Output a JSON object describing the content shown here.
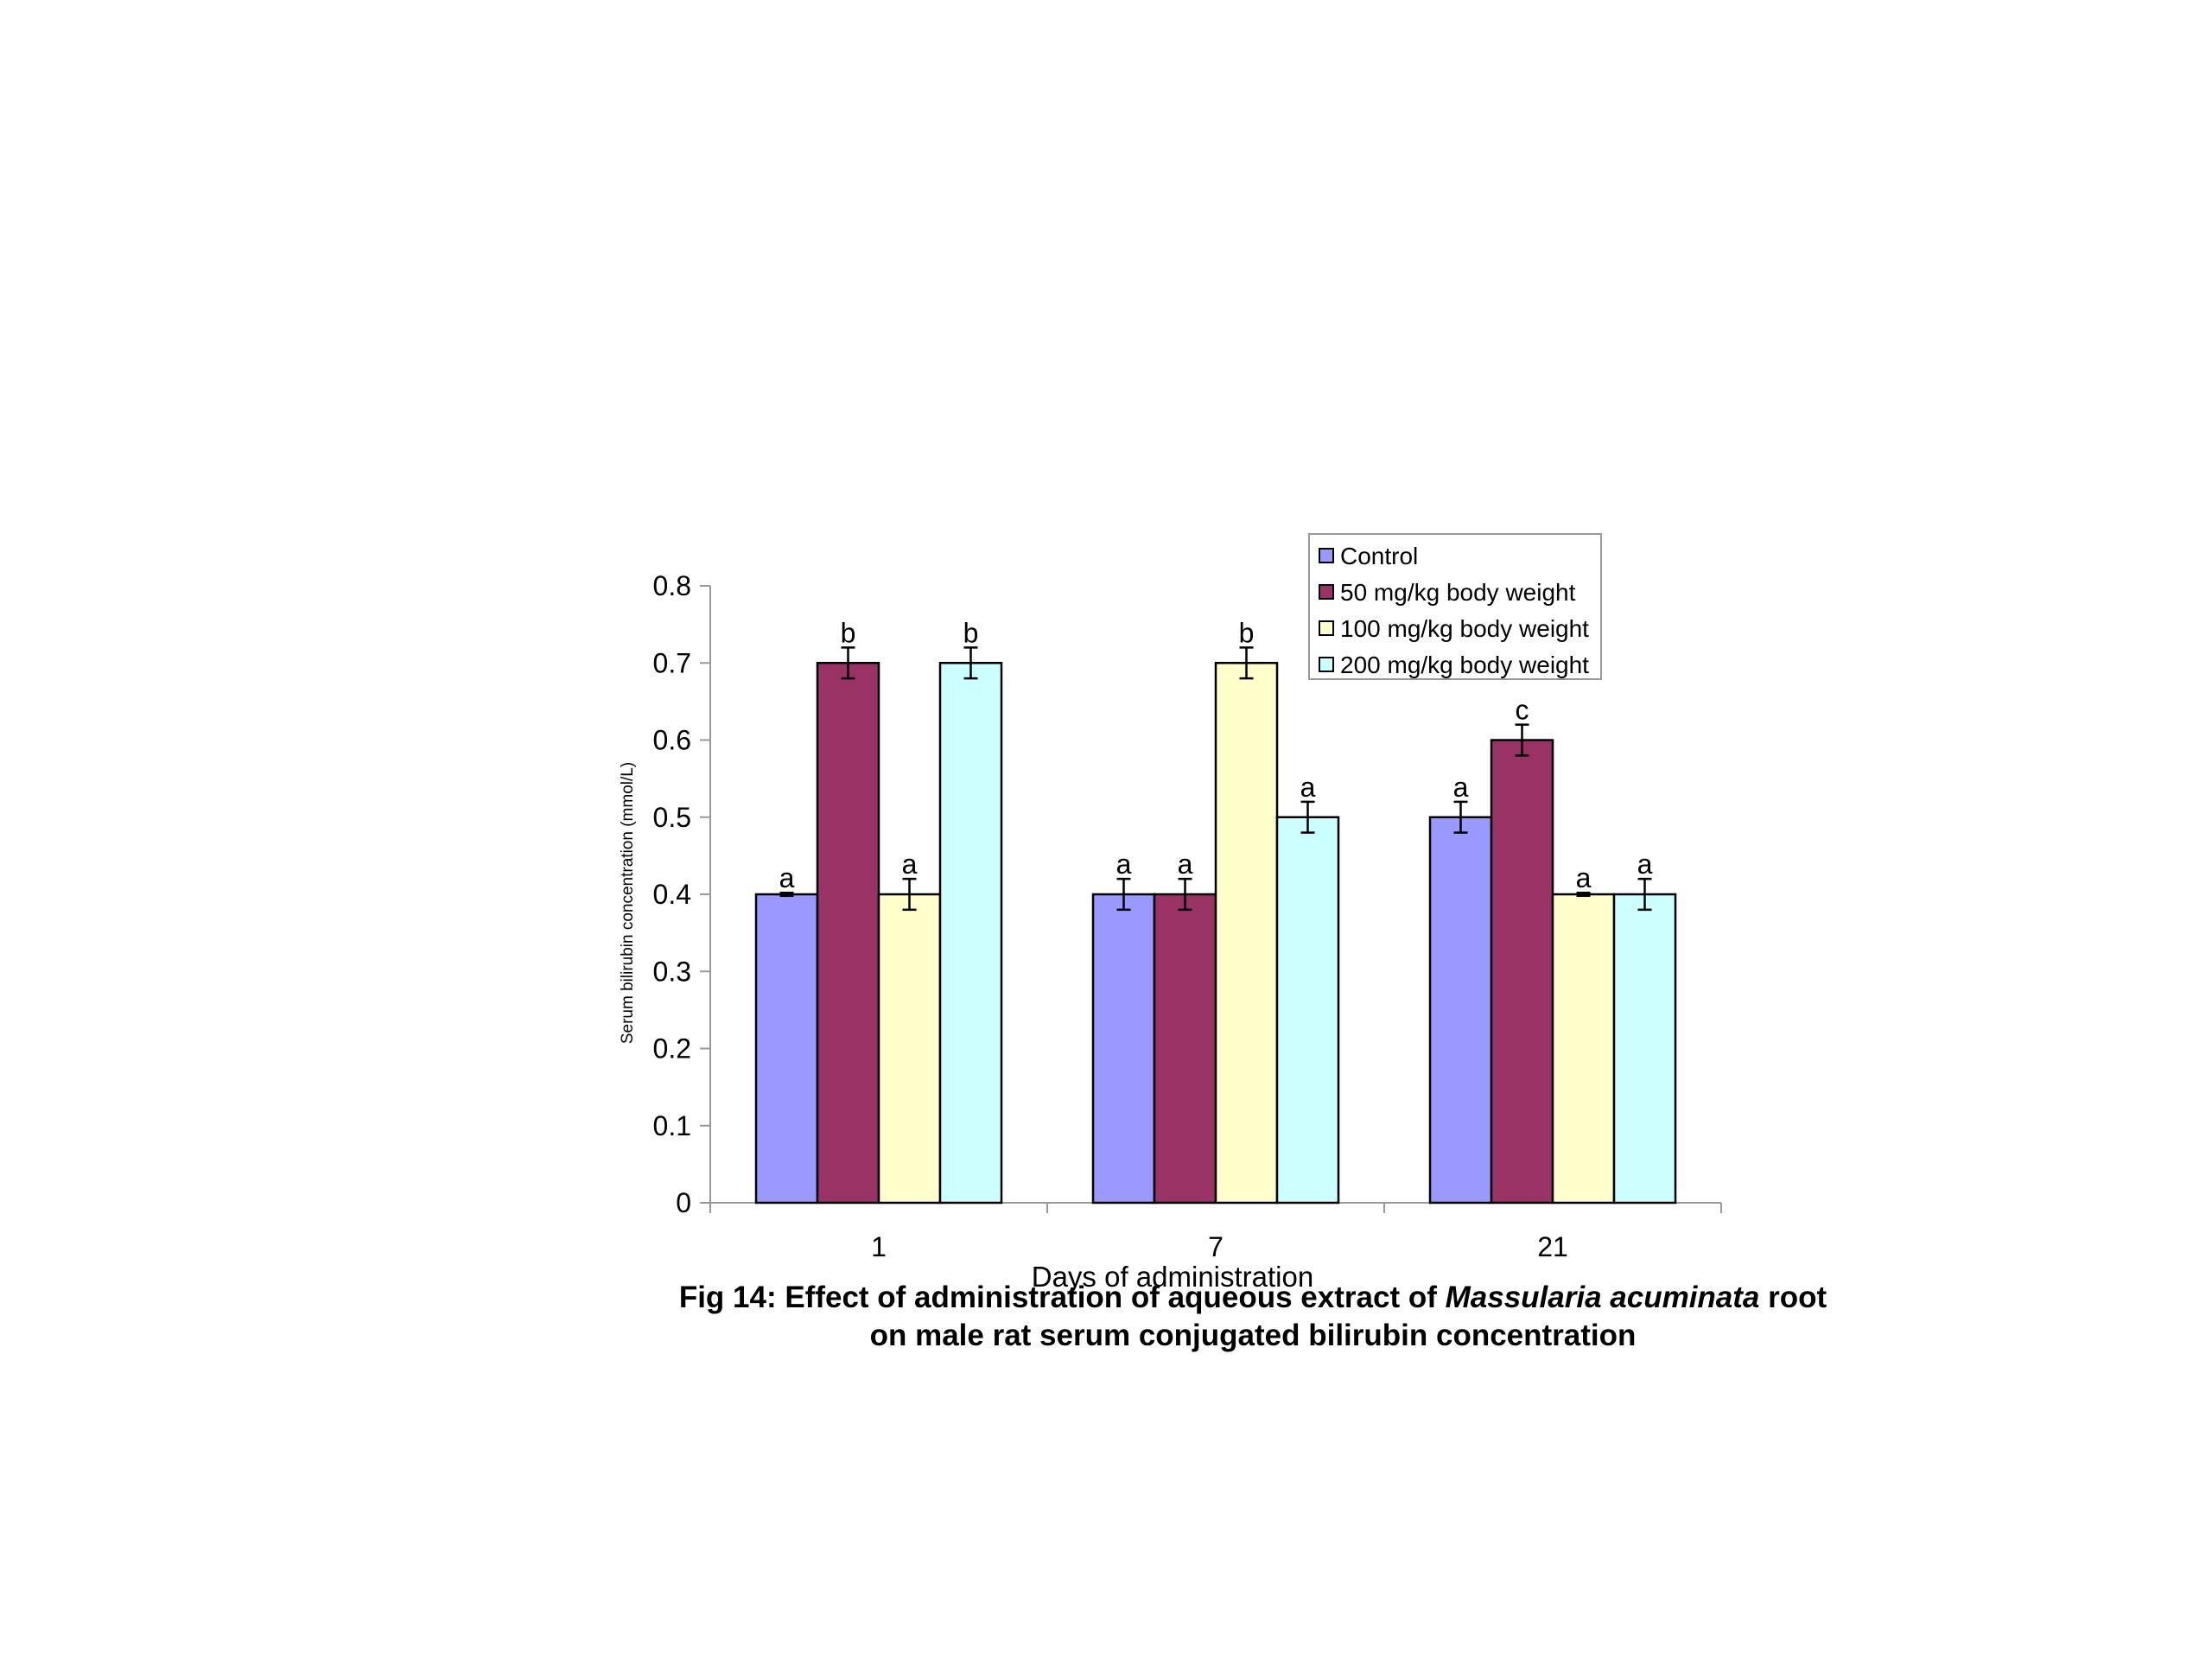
{
  "chart_data": {
    "type": "bar",
    "categories": [
      "1",
      "7",
      "21"
    ],
    "xlabel": "Days of administration",
    "ylabel": "Serum bilirubin concentration (mmol/L)",
    "ylim": [
      0,
      0.8
    ],
    "yticks": [
      "0",
      "0.1",
      "0.2",
      "0.3",
      "0.4",
      "0.5",
      "0.6",
      "0.7",
      "0.8"
    ],
    "grid": false,
    "legend_position": "top-right",
    "series": [
      {
        "name": "Control",
        "color": "#9999ff",
        "values": [
          0.4,
          0.4,
          0.5
        ],
        "errors": [
          0.002,
          0.02,
          0.02
        ],
        "labels": [
          "a",
          "a",
          "a"
        ]
      },
      {
        "name": "50 mg/kg body weight",
        "color": "#993366",
        "values": [
          0.7,
          0.4,
          0.6
        ],
        "errors": [
          0.02,
          0.02,
          0.02
        ],
        "labels": [
          "b",
          "a",
          "c"
        ]
      },
      {
        "name": "100 mg/kg body weight",
        "color": "#ffffcc",
        "values": [
          0.4,
          0.7,
          0.4
        ],
        "errors": [
          0.02,
          0.02,
          0.002
        ],
        "labels": [
          "a",
          "b",
          "a"
        ]
      },
      {
        "name": "200 mg/kg body weight",
        "color": "#ccffff",
        "values": [
          0.7,
          0.5,
          0.4
        ],
        "errors": [
          0.02,
          0.02,
          0.02
        ],
        "labels": [
          "b",
          "a",
          "a"
        ]
      }
    ]
  },
  "caption": {
    "line1_a": "Fig 14: Effect of administration of aqueous extract of",
    "line1_species": "Massularia acuminata",
    "line1_b": "root",
    "line2": "on male rat serum conjugated bilirubin concentration"
  }
}
